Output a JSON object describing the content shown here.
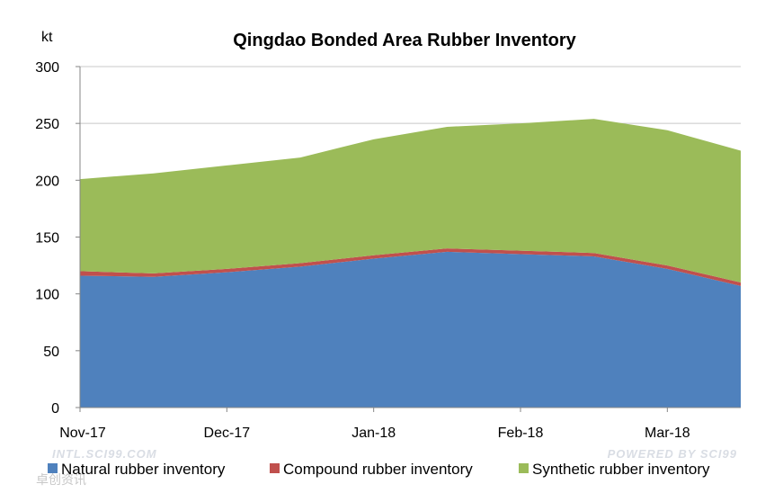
{
  "chart_data": {
    "type": "area",
    "stacked": true,
    "title": "Qingdao Bonded Area Rubber Inventory",
    "ylabel": "kt",
    "xlabel": "",
    "ylim": [
      0,
      300
    ],
    "yticks": [
      0,
      50,
      100,
      150,
      200,
      250,
      300
    ],
    "grid": true,
    "legend": "bottom",
    "x_labels": [
      "Nov-17",
      "Dec-17",
      "Jan-18",
      "Feb-18",
      "Mar-18"
    ],
    "x_label_index": [
      0,
      2,
      4,
      6,
      8
    ],
    "n_points": 10,
    "series": [
      {
        "name": "Natural rubber inventory",
        "color": "#4f81bd",
        "values": [
          116,
          115,
          119,
          124,
          131,
          137,
          135,
          133,
          122,
          107
        ]
      },
      {
        "name": "Compound rubber inventory",
        "color": "#c0504d",
        "values": [
          4,
          3,
          3,
          3,
          3,
          3,
          3,
          3,
          3,
          3
        ]
      },
      {
        "name": "Synthetic rubber inventory",
        "color": "#9bbb59",
        "values": [
          81,
          88,
          91,
          93,
          102,
          107,
          112,
          118,
          119,
          116
        ]
      }
    ]
  },
  "watermarks": {
    "left": "INTL.SCI99.COM",
    "right": "POWERED BY SCI99",
    "corner": "卓创资讯"
  }
}
